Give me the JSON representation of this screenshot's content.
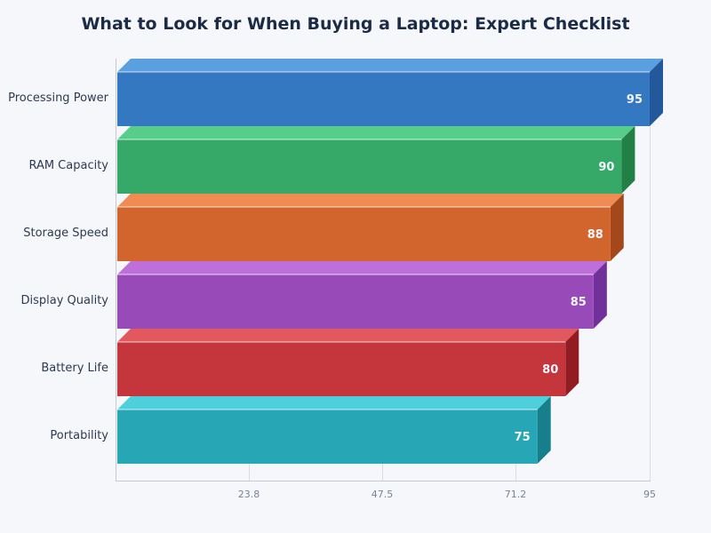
{
  "chart_data": {
    "type": "bar",
    "orientation": "horizontal",
    "style": "3d",
    "title": "What to Look for When Buying a Laptop: Expert Checklist",
    "xlabel": "",
    "ylabel": "",
    "categories": [
      "Processing Power",
      "RAM Capacity",
      "Storage Speed",
      "Display Quality",
      "Battery Life",
      "Portability"
    ],
    "values": [
      95,
      90,
      88,
      85,
      80,
      75
    ],
    "xlim": [
      0,
      95
    ],
    "xticks": [
      "23.8",
      "47.5",
      "71.2",
      "95"
    ],
    "grid": true,
    "legend": null,
    "colors": [
      {
        "front": "#3478c1",
        "top": "#5a9fe0",
        "side": "#23589a"
      },
      {
        "front": "#36a968",
        "top": "#57cd8a",
        "side": "#228047"
      },
      {
        "front": "#d2652d",
        "top": "#ef8c54",
        "side": "#a4481b"
      },
      {
        "front": "#984bb8",
        "top": "#bf6fd9",
        "side": "#72309a"
      },
      {
        "front": "#c4353c",
        "top": "#e2585f",
        "side": "#931c22"
      },
      {
        "front": "#27a6b5",
        "top": "#4ecfdc",
        "side": "#177f8c"
      }
    ]
  },
  "labels": {
    "title": "What to Look for When Buying a Laptop: Expert Checklist",
    "cat0": "Processing Power",
    "cat1": "RAM Capacity",
    "cat2": "Storage Speed",
    "cat3": "Display Quality",
    "cat4": "Battery Life",
    "cat5": "Portability",
    "val0": "95",
    "val1": "90",
    "val2": "88",
    "val3": "85",
    "val4": "80",
    "val5": "75",
    "tick0": "23.8",
    "tick1": "47.5",
    "tick2": "71.2",
    "tick3": "95"
  }
}
